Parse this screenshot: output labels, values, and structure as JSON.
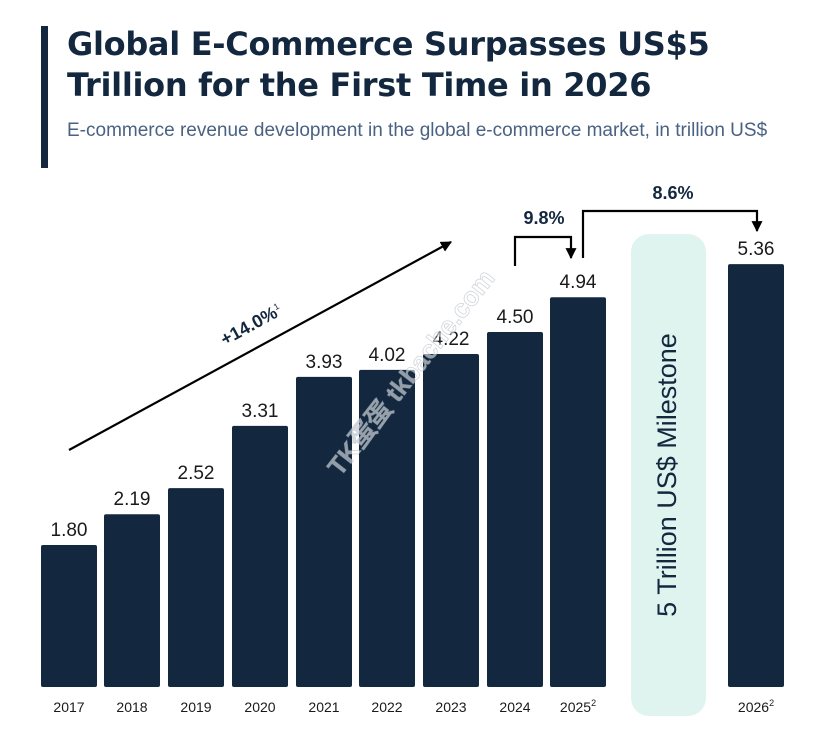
{
  "header": {
    "title": "Global E-Commerce Surpasses US$5 Trillion for the First Time in 2026",
    "subtitle": "E-commerce revenue development in the global e-commerce market, in trillion US$"
  },
  "chart_data": {
    "type": "bar",
    "title": "Global E-Commerce Surpasses US$5 Trillion for the First Time in 2026",
    "subtitle": "E-commerce revenue development in the global e-commerce market, in trillion US$",
    "xlabel": "",
    "ylabel": "",
    "categories": [
      "2017",
      "2018",
      "2019",
      "2020",
      "2021",
      "2022",
      "2023",
      "2024",
      "2025",
      "2026"
    ],
    "category_superscripts": [
      "",
      "",
      "",
      "",
      "",
      "",
      "",
      "",
      "2",
      "2"
    ],
    "values": [
      1.8,
      2.19,
      2.52,
      3.31,
      3.93,
      4.02,
      4.22,
      4.5,
      4.94,
      5.36
    ],
    "value_labels": [
      "1.80",
      "2.19",
      "2.52",
      "3.31",
      "3.93",
      "4.02",
      "4.22",
      "4.50",
      "4.94",
      "5.36"
    ],
    "ylim": [
      0,
      5.5
    ],
    "grid": false,
    "legend": "none",
    "colors": {
      "bar": "#13283f",
      "milestone_fill": "#dff4ee",
      "text": "#13283f",
      "subtitle": "#4a6282"
    },
    "annotations": {
      "cagr": {
        "text": "+14.0%",
        "superscript": "1",
        "from": "2017",
        "to": "2024"
      },
      "growth_2025": {
        "text": "9.8%",
        "from": "2024",
        "to": "2025"
      },
      "growth_2026": {
        "text": "8.6%",
        "from": "2025",
        "to": "2026"
      },
      "milestone": {
        "text": "5 Trillion US$ Milestone"
      }
    }
  },
  "watermark": "TK蛋蛋 tkbache.com"
}
